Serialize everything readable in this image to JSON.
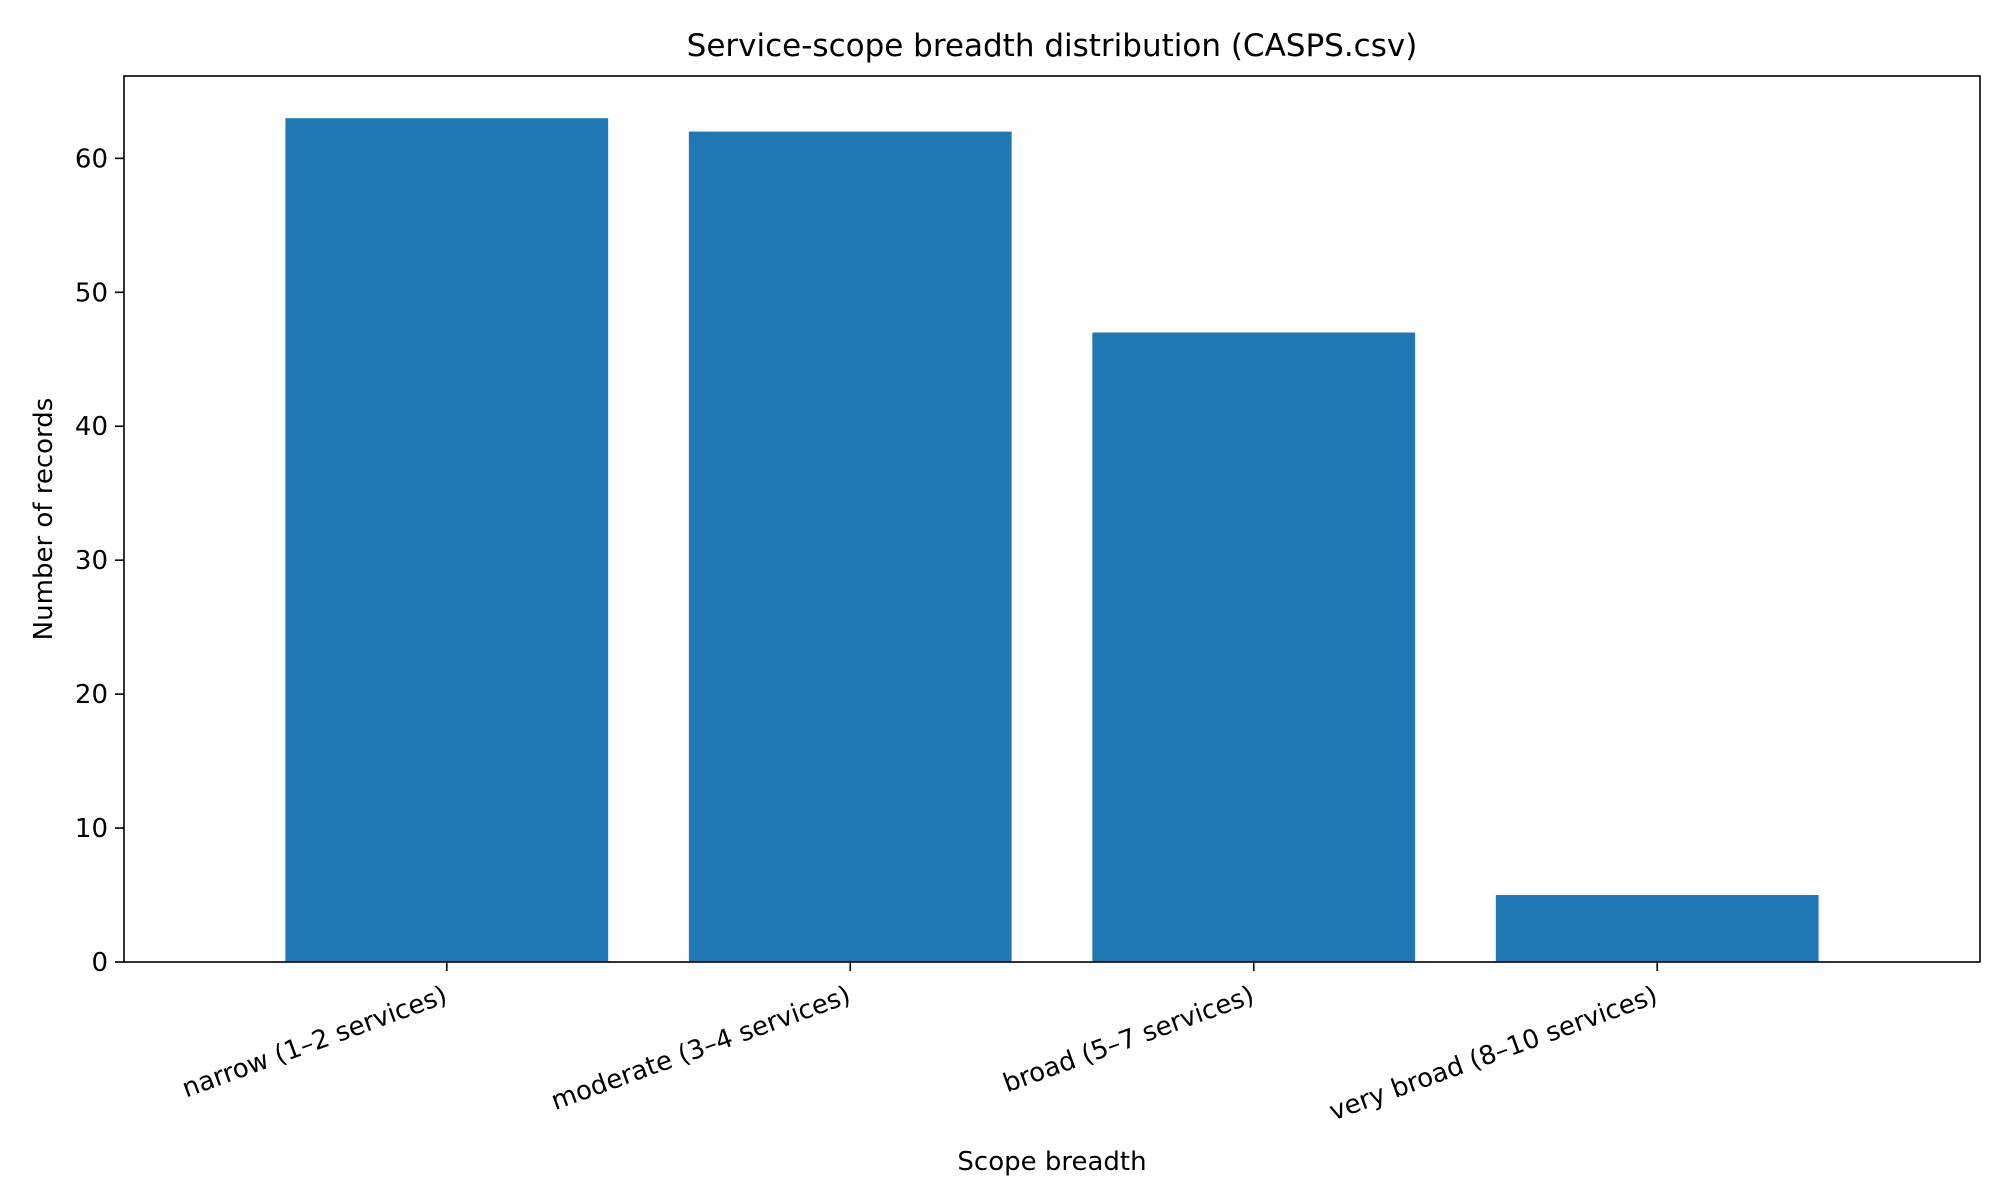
{
  "chart_data": {
    "type": "bar",
    "title": "Service-scope breadth distribution (CASPS.csv)",
    "xlabel": "Scope breadth",
    "ylabel": "Number of records",
    "categories": [
      "narrow (1–2 services)",
      "moderate (3–4 services)",
      "broad (5–7 services)",
      "very broad (8–10 services)"
    ],
    "values": [
      63,
      62,
      47,
      5
    ],
    "ylim": [
      0,
      66.15
    ],
    "yticks": [
      "0",
      "10",
      "20",
      "30",
      "40",
      "50",
      "60"
    ],
    "grid": false,
    "legend": "none",
    "colors": {
      "bar": "#1f77b4",
      "axis": "#000000",
      "background": "#ffffff"
    }
  }
}
